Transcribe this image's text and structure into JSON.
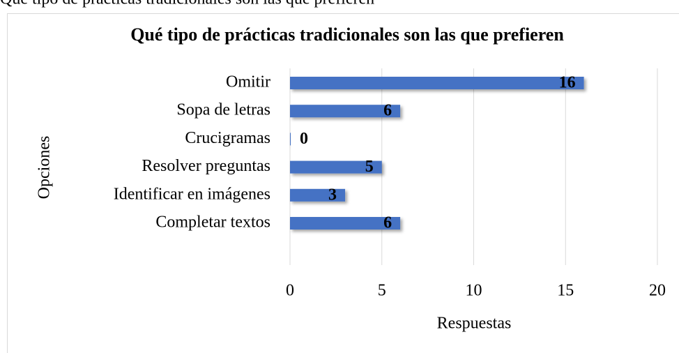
{
  "caption": "Qué tipo de prácticas tradicionales son las que prefieren",
  "chart_data": {
    "type": "hbar",
    "title": "Qué tipo de prácticas tradicionales son las que prefieren",
    "categories": [
      "Omitir",
      "Sopa de letras",
      "Crucigramas",
      "Resolver preguntas",
      "Identificar en imágenes",
      "Completar textos"
    ],
    "values": [
      16,
      6,
      0,
      5,
      3,
      6
    ],
    "color": "#4472c4",
    "xlim": [
      0,
      20
    ],
    "xticks": [
      0,
      5,
      10,
      15,
      20
    ],
    "xlabel": "Respuestas",
    "ylabel": "Opciones",
    "grid": true
  }
}
